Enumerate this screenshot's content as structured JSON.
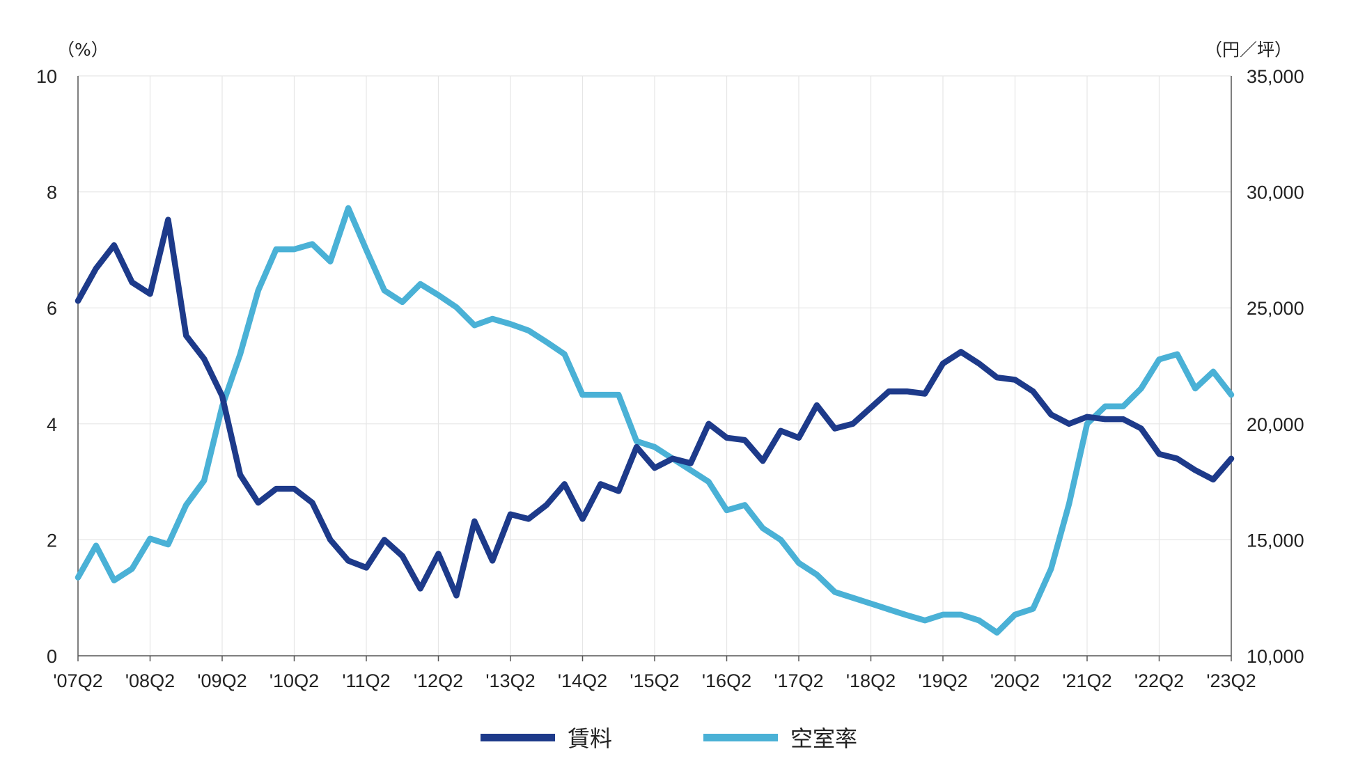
{
  "chart_data": {
    "type": "line",
    "y_left_unit": "（%）",
    "y_right_unit": "（円／坪）",
    "y_left_ticks": [
      "0",
      "2",
      "4",
      "6",
      "8",
      "10"
    ],
    "y_right_ticks": [
      "10,000",
      "15,000",
      "20,000",
      "25,000",
      "30,000",
      "35,000"
    ],
    "x_tick_labels": [
      "'07Q2",
      "'08Q2",
      "'09Q2",
      "'10Q2",
      "'11Q2",
      "'12Q2",
      "'13Q2",
      "'14Q2",
      "'15Q2",
      "'16Q2",
      "'17Q2",
      "'18Q2",
      "'19Q2",
      "'20Q2",
      "'21Q2",
      "'22Q2",
      "'23Q2"
    ],
    "ylim_left": [
      0,
      10
    ],
    "ylim_right": [
      10000,
      35000
    ],
    "grid": true,
    "legend_position": "bottom",
    "x": [
      "'07Q2",
      "'07Q3",
      "'07Q4",
      "'08Q1",
      "'08Q2",
      "'08Q3",
      "'08Q4",
      "'09Q1",
      "'09Q2",
      "'09Q3",
      "'09Q4",
      "'10Q1",
      "'10Q2",
      "'10Q3",
      "'10Q4",
      "'11Q1",
      "'11Q2",
      "'11Q3",
      "'11Q4",
      "'12Q1",
      "'12Q2",
      "'12Q3",
      "'12Q4",
      "'13Q1",
      "'13Q2",
      "'13Q3",
      "'13Q4",
      "'14Q1",
      "'14Q2",
      "'14Q3",
      "'14Q4",
      "'15Q1",
      "'15Q2",
      "'15Q3",
      "'15Q4",
      "'16Q1",
      "'16Q2",
      "'16Q3",
      "'16Q4",
      "'17Q1",
      "'17Q2",
      "'17Q3",
      "'17Q4",
      "'18Q1",
      "'18Q2",
      "'18Q3",
      "'18Q4",
      "'19Q1",
      "'19Q2",
      "'19Q3",
      "'19Q4",
      "'20Q1",
      "'20Q2",
      "'20Q3",
      "'20Q4",
      "'21Q1",
      "'21Q2",
      "'21Q3",
      "'21Q4",
      "'22Q1",
      "'22Q2",
      "'22Q3",
      "'22Q4",
      "'23Q1",
      "'23Q2"
    ],
    "series": [
      {
        "name": "賃料",
        "axis": "right",
        "color": "#1d3a8a",
        "values": [
          25300,
          26700,
          27700,
          26100,
          25600,
          28800,
          23800,
          22800,
          21200,
          17800,
          16600,
          17200,
          17200,
          16600,
          15000,
          14100,
          13800,
          15000,
          14300,
          12900,
          14400,
          12600,
          15800,
          14100,
          16100,
          15900,
          16500,
          17400,
          15900,
          17400,
          17100,
          19000,
          18100,
          18500,
          18300,
          20000,
          19400,
          19300,
          18400,
          19700,
          19400,
          20800,
          19800,
          20000,
          20700,
          21400,
          21400,
          21300,
          22600,
          23100,
          22600,
          22000,
          21900,
          21400,
          20400,
          20000,
          20300,
          20200,
          20200,
          19800,
          18700,
          18500,
          18000,
          17600,
          18500
        ]
      },
      {
        "name": "空室率",
        "axis": "left",
        "color": "#4ab1d6",
        "values": [
          1.35,
          1.9,
          1.3,
          1.5,
          2.02,
          1.92,
          2.6,
          3.02,
          4.3,
          5.2,
          6.3,
          7.01,
          7.01,
          7.1,
          6.8,
          7.72,
          7.0,
          6.3,
          6.1,
          6.41,
          6.22,
          6.01,
          5.7,
          5.81,
          5.72,
          5.61,
          5.41,
          5.2,
          4.5,
          4.5,
          4.5,
          3.7,
          3.6,
          3.4,
          3.2,
          3.0,
          2.51,
          2.6,
          2.2,
          2.0,
          1.6,
          1.4,
          1.1,
          1.0,
          0.9,
          0.8,
          0.7,
          0.61,
          0.71,
          0.71,
          0.61,
          0.4,
          0.71,
          0.81,
          1.5,
          2.62,
          4.0,
          4.3,
          4.3,
          4.61,
          5.11,
          5.2,
          4.61,
          4.9,
          4.5
        ]
      }
    ]
  }
}
